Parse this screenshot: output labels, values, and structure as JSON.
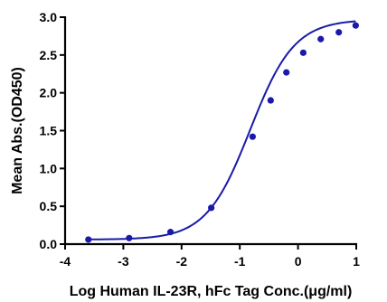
{
  "chart_data": {
    "type": "scatter",
    "title": "",
    "xlabel": "Log Human IL-23R, hFc Tag Conc.(μg/ml)",
    "ylabel": "Mean Abs.(OD450)",
    "xlim": [
      -4,
      1
    ],
    "ylim": [
      0,
      3
    ],
    "xticks": [
      "-4",
      "-3",
      "-2",
      "-1",
      "0",
      "1"
    ],
    "yticks": [
      "0.0",
      "0.5",
      "1.0",
      "1.5",
      "2.0",
      "2.5",
      "3.0"
    ],
    "grid": false,
    "legend": "none",
    "color": "#1a1aaa",
    "series": [
      {
        "x": [
          -3.6,
          -2.9,
          -2.19,
          -1.49,
          -0.78,
          -0.47,
          -0.2,
          0.09,
          0.39,
          0.7,
          0.99
        ],
        "y": [
          0.06,
          0.08,
          0.16,
          0.48,
          1.42,
          1.9,
          2.27,
          2.53,
          2.71,
          2.8,
          2.89
        ]
      }
    ],
    "fit": {
      "type": "4PL",
      "bottom": 0.06,
      "top": 2.97,
      "logEC50": -0.82,
      "hill": 1.15
    }
  }
}
